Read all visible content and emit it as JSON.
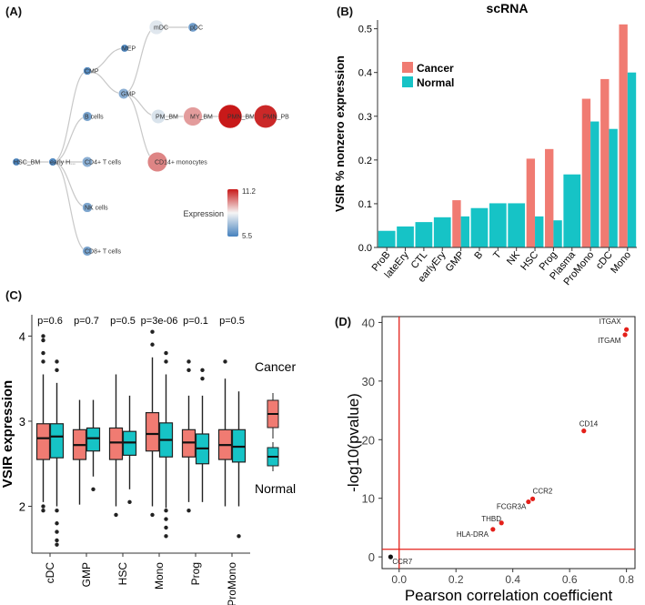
{
  "panels": {
    "A": {
      "label": "(A)",
      "nodes": [
        {
          "id": "HSC_BM",
          "label": "HSC_BM",
          "value": 5.6
        },
        {
          "id": "earlyH",
          "label": "early H...",
          "value": 5.7
        },
        {
          "id": "CMP",
          "label": "CMP",
          "value": 5.8
        },
        {
          "id": "MEP",
          "label": "MEP",
          "value": 5.6
        },
        {
          "id": "mDC",
          "label": "mDC",
          "value": 8.0
        },
        {
          "id": "pDC",
          "label": "pDC",
          "value": 6.2
        },
        {
          "id": "GMP",
          "label": "GMP",
          "value": 6.6
        },
        {
          "id": "PM_BM",
          "label": "PM_BM",
          "value": 7.9
        },
        {
          "id": "MY_BM",
          "label": "MY_BM",
          "value": 9.5
        },
        {
          "id": "PMN_BM",
          "label": "PMN_BM",
          "value": 11.2
        },
        {
          "id": "PMN_PB",
          "label": "PMN_PB",
          "value": 11.0
        },
        {
          "id": "CD14mono",
          "label": "CD14+ monocytes",
          "value": 9.8
        },
        {
          "id": "Bcells",
          "label": "B cells",
          "value": 6.3
        },
        {
          "id": "CD4",
          "label": "CD4+ T cells",
          "value": 6.6
        },
        {
          "id": "NK",
          "label": "NK cells",
          "value": 6.4
        },
        {
          "id": "CD8",
          "label": "CD8+ T cells",
          "value": 6.3
        }
      ],
      "edges": [
        [
          "HSC_BM",
          "earlyH"
        ],
        [
          "earlyH",
          "CMP"
        ],
        [
          "earlyH",
          "Bcells"
        ],
        [
          "earlyH",
          "CD4"
        ],
        [
          "earlyH",
          "NK"
        ],
        [
          "earlyH",
          "CD8"
        ],
        [
          "CMP",
          "MEP"
        ],
        [
          "CMP",
          "GMP"
        ],
        [
          "GMP",
          "mDC"
        ],
        [
          "mDC",
          "pDC"
        ],
        [
          "GMP",
          "PM_BM"
        ],
        [
          "PM_BM",
          "MY_BM"
        ],
        [
          "MY_BM",
          "PMN_BM"
        ],
        [
          "PMN_BM",
          "PMN_PB"
        ],
        [
          "GMP",
          "CD14mono"
        ]
      ],
      "legend": {
        "title": "Expression",
        "max_label": "11.2",
        "min_label": "5.5",
        "min": 5.5,
        "max": 11.2
      }
    },
    "B": {
      "label": "(B)",
      "chart_data": {
        "type": "bar",
        "title": "scRNA",
        "ylabel": "VSIR % nonzero expression",
        "xlabel": "",
        "ylim": [
          0,
          0.52
        ],
        "yticks": [
          0.0,
          0.1,
          0.2,
          0.3,
          0.4,
          0.5
        ],
        "ytick_labels": [
          "0.0",
          "0.1",
          "0.2",
          "0.3",
          "0.4",
          "0.5"
        ],
        "categories": [
          "ProB",
          "lateEry",
          "CTL",
          "earlyEry",
          "GMP",
          "B",
          "T",
          "NK",
          "HSC",
          "Prog",
          "Plasma",
          "ProMono",
          "cDC",
          "Mono"
        ],
        "series": [
          {
            "name": "Cancer",
            "color": "#f07b72",
            "values": [
              null,
              null,
              null,
              null,
              0.108,
              null,
              null,
              null,
              0.203,
              0.225,
              null,
              0.34,
              0.385,
              0.51
            ]
          },
          {
            "name": "Normal",
            "color": "#16c3c6",
            "values": [
              0.038,
              0.048,
              0.058,
              0.069,
              0.071,
              0.09,
              0.101,
              0.101,
              0.071,
              0.062,
              0.167,
              0.288,
              0.271,
              0.4
            ]
          }
        ],
        "legend": [
          "Cancer",
          "Normal"
        ]
      }
    },
    "C": {
      "label": "(C)",
      "chart_data": {
        "type": "box",
        "ylabel": "VSIR expression",
        "ylim": [
          1.45,
          4.25
        ],
        "yticks": [
          2,
          3,
          4
        ],
        "ytick_labels": [
          "2",
          "3",
          "4"
        ],
        "categories": [
          "cDC",
          "GMP",
          "HSC",
          "Mono",
          "Prog",
          "ProMono"
        ],
        "pvalues": [
          "p=0.6",
          "p=0.7",
          "p=0.5",
          "p=3e-06",
          "p=0.1",
          "p=0.5"
        ],
        "series": [
          {
            "name": "Cancer",
            "color": "#f07b72",
            "boxes": [
              {
                "q1": 2.55,
                "median": 2.8,
                "q3": 2.97,
                "whislo": 2.05,
                "whishi": 3.55
              },
              {
                "q1": 2.55,
                "median": 2.72,
                "q3": 2.9,
                "whislo": 2.02,
                "whishi": 3.25
              },
              {
                "q1": 2.55,
                "median": 2.75,
                "q3": 2.92,
                "whislo": 2.0,
                "whishi": 3.55
              },
              {
                "q1": 2.65,
                "median": 2.85,
                "q3": 3.1,
                "whislo": 2.0,
                "whishi": 3.75
              },
              {
                "q1": 2.58,
                "median": 2.75,
                "q3": 2.9,
                "whislo": 2.05,
                "whishi": 3.3
              },
              {
                "q1": 2.55,
                "median": 2.72,
                "q3": 2.9,
                "whislo": 2.0,
                "whishi": 3.5
              }
            ],
            "outliers": [
              [
                3.8,
                3.95,
                4.0,
                3.7,
                1.95,
                2.0
              ],
              [],
              [
                1.9
              ],
              [
                3.9,
                4.05,
                1.9
              ],
              [
                3.6,
                3.7,
                1.95
              ],
              [
                3.7
              ]
            ]
          },
          {
            "name": "Normal",
            "color": "#16c3c6",
            "boxes": [
              {
                "q1": 2.57,
                "median": 2.82,
                "q3": 2.97,
                "whislo": 2.0,
                "whishi": 3.45
              },
              {
                "q1": 2.65,
                "median": 2.8,
                "q3": 2.92,
                "whislo": 2.35,
                "whishi": 3.25
              },
              {
                "q1": 2.6,
                "median": 2.75,
                "q3": 2.88,
                "whislo": 2.2,
                "whishi": 3.3
              },
              {
                "q1": 2.58,
                "median": 2.78,
                "q3": 2.98,
                "whislo": 1.98,
                "whishi": 3.55
              },
              {
                "q1": 2.5,
                "median": 2.68,
                "q3": 2.85,
                "whislo": 2.05,
                "whishi": 3.3
              },
              {
                "q1": 2.52,
                "median": 2.7,
                "q3": 2.9,
                "whislo": 2.0,
                "whishi": 3.35
              }
            ],
            "outliers": [
              [
                1.95,
                1.8,
                1.7,
                1.6,
                1.55,
                3.6,
                3.7
              ],
              [
                2.2
              ],
              [
                2.05
              ],
              [
                1.95,
                1.85,
                1.75,
                1.65,
                3.7,
                3.8
              ],
              [
                3.5,
                3.6
              ],
              [
                1.65
              ]
            ]
          }
        ],
        "legend": [
          "Cancer",
          "Normal"
        ]
      }
    },
    "D": {
      "label": "(D)",
      "chart_data": {
        "type": "scatter",
        "xlabel": "Pearson correlation coefficient",
        "ylabel": "-log10(pvalue)",
        "xlim": [
          -0.06,
          0.83
        ],
        "ylim": [
          -2.0,
          41.0
        ],
        "xticks": [
          0.0,
          0.2,
          0.4,
          0.6,
          0.8
        ],
        "xtick_labels": [
          "0.0",
          "0.2",
          "0.4",
          "0.6",
          "0.8"
        ],
        "yticks": [
          0,
          10,
          20,
          30,
          40
        ],
        "ytick_labels": [
          "0",
          "10",
          "20",
          "30",
          "40"
        ],
        "vline": 0.0,
        "hline": 1.3,
        "points": [
          {
            "label": "ITGAX",
            "x": 0.8,
            "y": 38.8,
            "color": "#e4201a"
          },
          {
            "label": "ITGAM",
            "x": 0.795,
            "y": 37.9,
            "color": "#e4201a"
          },
          {
            "label": "CD14",
            "x": 0.65,
            "y": 21.5,
            "color": "#e4201a"
          },
          {
            "label": "CCR2",
            "x": 0.47,
            "y": 9.9,
            "color": "#e4201a"
          },
          {
            "label": "FCGR3A",
            "x": 0.455,
            "y": 9.4,
            "color": "#e4201a"
          },
          {
            "label": "THBD",
            "x": 0.36,
            "y": 5.8,
            "color": "#e4201a"
          },
          {
            "label": "HLA-DRA",
            "x": 0.33,
            "y": 4.7,
            "color": "#e4201a"
          },
          {
            "label": "CCR7",
            "x": -0.03,
            "y": 0.0,
            "color": "#111111"
          }
        ]
      }
    }
  }
}
